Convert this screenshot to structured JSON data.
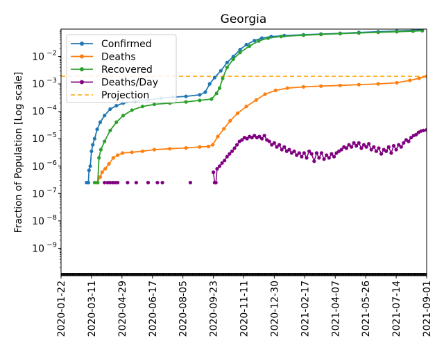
{
  "chart_data": {
    "type": "line",
    "title": "Georgia",
    "ylabel": "Fraction of Population [Log scale]",
    "xlabel": "",
    "yscale": "log",
    "ylim": [
      1e-10,
      0.1
    ],
    "xlim": [
      "2020-01-22",
      "2021-09-01"
    ],
    "x_tick_labels": [
      "2020-01-22",
      "2020-03-11",
      "2020-04-29",
      "2020-06-17",
      "2020-08-05",
      "2020-09-23",
      "2020-11-11",
      "2020-12-30",
      "2021-02-17",
      "2021-04-07",
      "2021-05-26",
      "2021-07-14",
      "2021-09-01"
    ],
    "y_ticks": [
      {
        "value": 1e-09,
        "base": "10",
        "exp": "−9"
      },
      {
        "value": 1e-08,
        "base": "10",
        "exp": "−8"
      },
      {
        "value": 1e-07,
        "base": "10",
        "exp": "−7"
      },
      {
        "value": 1e-06,
        "base": "10",
        "exp": "−6"
      },
      {
        "value": 1e-05,
        "base": "10",
        "exp": "−5"
      },
      {
        "value": 0.0001,
        "base": "10",
        "exp": "−4"
      },
      {
        "value": 0.001,
        "base": "10",
        "exp": "−3"
      },
      {
        "value": 0.01,
        "base": "10",
        "exp": "−2"
      }
    ],
    "legend": {
      "location": "upper-left",
      "entries": [
        {
          "label": "Confirmed",
          "color": "#1f77b4",
          "style": "line-marker"
        },
        {
          "label": "Deaths",
          "color": "#ff7f0e",
          "style": "line-marker"
        },
        {
          "label": "Recovered",
          "color": "#2ca02c",
          "style": "line-marker"
        },
        {
          "label": "Deaths/Day",
          "color": "#800080",
          "style": "line-marker"
        },
        {
          "label": "Projection",
          "color": "#ffa500",
          "style": "dashed"
        }
      ]
    },
    "series": [
      {
        "name": "Confirmed",
        "color": "#1f77b4",
        "points": [
          [
            "2020-03-03",
            2.5e-07
          ],
          [
            "2020-03-06",
            2.5e-07
          ],
          [
            "2020-03-07",
            7e-07
          ],
          [
            "2020-03-09",
            1e-06
          ],
          [
            "2020-03-11",
            3.5e-06
          ],
          [
            "2020-03-13",
            6e-06
          ],
          [
            "2020-03-16",
            1e-05
          ],
          [
            "2020-03-20",
            2.2e-05
          ],
          [
            "2020-03-25",
            4e-05
          ],
          [
            "2020-04-01",
            7e-05
          ],
          [
            "2020-04-10",
            0.00012
          ],
          [
            "2020-04-20",
            0.00016
          ],
          [
            "2020-05-01",
            0.0002
          ],
          [
            "2020-05-20",
            0.00023
          ],
          [
            "2020-06-10",
            0.00026
          ],
          [
            "2020-07-01",
            0.0003
          ],
          [
            "2020-07-20",
            0.00033
          ],
          [
            "2020-08-10",
            0.00035
          ],
          [
            "2020-09-01",
            0.0004
          ],
          [
            "2020-09-10",
            0.0005
          ],
          [
            "2020-09-17",
            0.001
          ],
          [
            "2020-09-25",
            0.0017
          ],
          [
            "2020-10-05",
            0.003
          ],
          [
            "2020-10-15",
            0.006
          ],
          [
            "2020-10-25",
            0.01
          ],
          [
            "2020-11-05",
            0.018
          ],
          [
            "2020-11-15",
            0.027
          ],
          [
            "2020-11-28",
            0.038
          ],
          [
            "2020-12-10",
            0.047
          ],
          [
            "2020-12-25",
            0.053
          ],
          [
            "2021-01-15",
            0.058
          ],
          [
            "2021-02-15",
            0.062
          ],
          [
            "2021-03-15",
            0.066
          ],
          [
            "2021-04-15",
            0.07
          ],
          [
            "2021-05-15",
            0.075
          ],
          [
            "2021-06-15",
            0.08
          ],
          [
            "2021-07-15",
            0.085
          ],
          [
            "2021-08-10",
            0.09
          ],
          [
            "2021-08-25",
            0.095
          ]
        ]
      },
      {
        "name": "Deaths",
        "color": "#ff7f0e",
        "points": [
          [
            "2020-03-20",
            2.5e-07
          ],
          [
            "2020-03-25",
            4e-07
          ],
          [
            "2020-03-28",
            6e-07
          ],
          [
            "2020-04-02",
            8e-07
          ],
          [
            "2020-04-08",
            1.2e-06
          ],
          [
            "2020-04-15",
            2e-06
          ],
          [
            "2020-04-22",
            2.5e-06
          ],
          [
            "2020-04-30",
            3e-06
          ],
          [
            "2020-05-15",
            3.2e-06
          ],
          [
            "2020-06-01",
            3.5e-06
          ],
          [
            "2020-06-20",
            4e-06
          ],
          [
            "2020-07-15",
            4.3e-06
          ],
          [
            "2020-08-10",
            4.6e-06
          ],
          [
            "2020-09-01",
            5e-06
          ],
          [
            "2020-09-15",
            5.2e-06
          ],
          [
            "2020-09-22",
            6e-06
          ],
          [
            "2020-09-30",
            1.2e-05
          ],
          [
            "2020-10-10",
            2.3e-05
          ],
          [
            "2020-10-20",
            4.5e-05
          ],
          [
            "2020-11-01",
            8.5e-05
          ],
          [
            "2020-11-15",
            0.00015
          ],
          [
            "2020-12-01",
            0.00026
          ],
          [
            "2020-12-15",
            0.00042
          ],
          [
            "2021-01-01",
            0.00058
          ],
          [
            "2021-01-20",
            0.0007
          ],
          [
            "2021-02-15",
            0.00078
          ],
          [
            "2021-03-15",
            0.00083
          ],
          [
            "2021-04-15",
            0.00088
          ],
          [
            "2021-05-15",
            0.00094
          ],
          [
            "2021-06-15",
            0.001
          ],
          [
            "2021-07-15",
            0.0011
          ],
          [
            "2021-08-05",
            0.00135
          ],
          [
            "2021-08-20",
            0.0016
          ],
          [
            "2021-09-01",
            0.0019
          ]
        ]
      },
      {
        "name": "Recovered",
        "color": "#2ca02c",
        "points": [
          [
            "2020-03-16",
            2.5e-07
          ],
          [
            "2020-03-21",
            2.5e-07
          ],
          [
            "2020-03-23",
            2e-06
          ],
          [
            "2020-03-26",
            4e-06
          ],
          [
            "2020-04-01",
            8e-06
          ],
          [
            "2020-04-10",
            2e-05
          ],
          [
            "2020-04-20",
            4e-05
          ],
          [
            "2020-05-01",
            7e-05
          ],
          [
            "2020-05-15",
            0.00011
          ],
          [
            "2020-06-01",
            0.00015
          ],
          [
            "2020-06-20",
            0.00018
          ],
          [
            "2020-07-15",
            0.0002
          ],
          [
            "2020-08-10",
            0.00022
          ],
          [
            "2020-09-01",
            0.00025
          ],
          [
            "2020-09-20",
            0.00028
          ],
          [
            "2020-09-28",
            0.00045
          ],
          [
            "2020-10-03",
            0.0007
          ],
          [
            "2020-10-08",
            0.0016
          ],
          [
            "2020-10-15",
            0.004
          ],
          [
            "2020-10-25",
            0.008
          ],
          [
            "2020-11-05",
            0.014
          ],
          [
            "2020-11-20",
            0.024
          ],
          [
            "2020-12-05",
            0.037
          ],
          [
            "2020-12-20",
            0.047
          ],
          [
            "2021-01-10",
            0.054
          ],
          [
            "2021-02-15",
            0.06
          ],
          [
            "2021-03-15",
            0.064
          ],
          [
            "2021-04-15",
            0.068
          ],
          [
            "2021-05-15",
            0.072
          ],
          [
            "2021-06-15",
            0.076
          ],
          [
            "2021-07-15",
            0.08
          ],
          [
            "2021-08-10",
            0.084
          ],
          [
            "2021-08-25",
            0.087
          ]
        ]
      },
      {
        "name": "Deaths/Day",
        "color": "#800080",
        "points": [
          [
            "2020-04-01",
            2.5e-07
          ],
          [
            "2020-04-06",
            2.5e-07
          ],
          [
            "2020-04-10",
            2.5e-07
          ],
          [
            "2020-04-14",
            2.5e-07
          ],
          [
            "2020-04-18",
            2.5e-07
          ],
          [
            "2020-04-22",
            2.5e-07
          ],
          [
            "2020-05-08",
            2.5e-07
          ],
          [
            "2020-05-22",
            2.5e-07
          ],
          [
            "2020-06-10",
            2.5e-07
          ],
          [
            "2020-06-25",
            2.5e-07
          ],
          [
            "2020-07-03",
            2.5e-07
          ],
          [
            "2020-08-17",
            2.5e-07
          ],
          [
            "2020-09-23",
            6e-07
          ],
          [
            "2020-09-25",
            2.5e-07
          ],
          [
            "2020-09-27",
            2.5e-07
          ],
          [
            "2020-09-29",
            8e-07
          ],
          [
            "2020-10-03",
            1e-06
          ],
          [
            "2020-10-07",
            1.3e-06
          ],
          [
            "2020-10-11",
            1.6e-06
          ],
          [
            "2020-10-15",
            2.2e-06
          ],
          [
            "2020-10-19",
            2.8e-06
          ],
          [
            "2020-10-23",
            3.5e-06
          ],
          [
            "2020-10-27",
            4.5e-06
          ],
          [
            "2020-10-31",
            6e-06
          ],
          [
            "2020-11-04",
            8e-06
          ],
          [
            "2020-11-08",
            9e-06
          ],
          [
            "2020-11-12",
            1.1e-05
          ],
          [
            "2020-11-16",
            1e-05
          ],
          [
            "2020-11-20",
            1.2e-05
          ],
          [
            "2020-11-24",
            1.1e-05
          ],
          [
            "2020-11-28",
            1.3e-05
          ],
          [
            "2020-12-02",
            1.1e-05
          ],
          [
            "2020-12-06",
            1.2e-05
          ],
          [
            "2020-12-10",
            1e-05
          ],
          [
            "2020-12-14",
            1.3e-05
          ],
          [
            "2020-12-18",
            9e-06
          ],
          [
            "2020-12-22",
            8e-06
          ],
          [
            "2020-12-26",
            6e-06
          ],
          [
            "2020-12-30",
            7e-06
          ],
          [
            "2021-01-03",
            5e-06
          ],
          [
            "2021-01-07",
            6e-06
          ],
          [
            "2021-01-11",
            4e-06
          ],
          [
            "2021-01-15",
            5e-06
          ],
          [
            "2021-01-19",
            3.5e-06
          ],
          [
            "2021-01-23",
            4e-06
          ],
          [
            "2021-01-27",
            3e-06
          ],
          [
            "2021-01-31",
            3.5e-06
          ],
          [
            "2021-02-04",
            2.5e-06
          ],
          [
            "2021-02-08",
            3e-06
          ],
          [
            "2021-02-12",
            2.2e-06
          ],
          [
            "2021-02-16",
            3e-06
          ],
          [
            "2021-02-20",
            2e-06
          ],
          [
            "2021-02-24",
            3.5e-06
          ],
          [
            "2021-02-28",
            2.8e-06
          ],
          [
            "2021-03-04",
            1.5e-06
          ],
          [
            "2021-03-08",
            3e-06
          ],
          [
            "2021-03-12",
            2e-06
          ],
          [
            "2021-03-16",
            3e-06
          ],
          [
            "2021-03-20",
            1.8e-06
          ],
          [
            "2021-03-24",
            2.5e-06
          ],
          [
            "2021-03-28",
            2e-06
          ],
          [
            "2021-04-01",
            2.8e-06
          ],
          [
            "2021-04-05",
            2.2e-06
          ],
          [
            "2021-04-09",
            3e-06
          ],
          [
            "2021-04-13",
            3.5e-06
          ],
          [
            "2021-04-17",
            4e-06
          ],
          [
            "2021-04-21",
            5e-06
          ],
          [
            "2021-04-25",
            4.5e-06
          ],
          [
            "2021-04-29",
            6e-06
          ],
          [
            "2021-05-03",
            5e-06
          ],
          [
            "2021-05-07",
            7e-06
          ],
          [
            "2021-05-11",
            5.5e-06
          ],
          [
            "2021-05-15",
            7e-06
          ],
          [
            "2021-05-19",
            4.5e-06
          ],
          [
            "2021-05-23",
            6e-06
          ],
          [
            "2021-05-27",
            5e-06
          ],
          [
            "2021-05-31",
            6.5e-06
          ],
          [
            "2021-06-04",
            4e-06
          ],
          [
            "2021-06-08",
            5e-06
          ],
          [
            "2021-06-12",
            3.5e-06
          ],
          [
            "2021-06-16",
            4.5e-06
          ],
          [
            "2021-06-20",
            2.8e-06
          ],
          [
            "2021-06-24",
            4e-06
          ],
          [
            "2021-06-28",
            3.5e-06
          ],
          [
            "2021-07-02",
            5e-06
          ],
          [
            "2021-07-06",
            3e-06
          ],
          [
            "2021-07-10",
            5.5e-06
          ],
          [
            "2021-07-14",
            4e-06
          ],
          [
            "2021-07-18",
            6e-06
          ],
          [
            "2021-07-22",
            5e-06
          ],
          [
            "2021-07-26",
            7e-06
          ],
          [
            "2021-07-30",
            9e-06
          ],
          [
            "2021-08-03",
            8e-06
          ],
          [
            "2021-08-07",
            1.1e-05
          ],
          [
            "2021-08-11",
            1.3e-05
          ],
          [
            "2021-08-15",
            1.4e-05
          ],
          [
            "2021-08-19",
            1.7e-05
          ],
          [
            "2021-08-23",
            1.9e-05
          ],
          [
            "2021-08-27",
            2e-05
          ],
          [
            "2021-09-01",
            2.1e-05
          ]
        ]
      }
    ],
    "projection": {
      "name": "Projection",
      "value": 0.0019,
      "color": "#ffa500",
      "style": "dashed"
    }
  }
}
